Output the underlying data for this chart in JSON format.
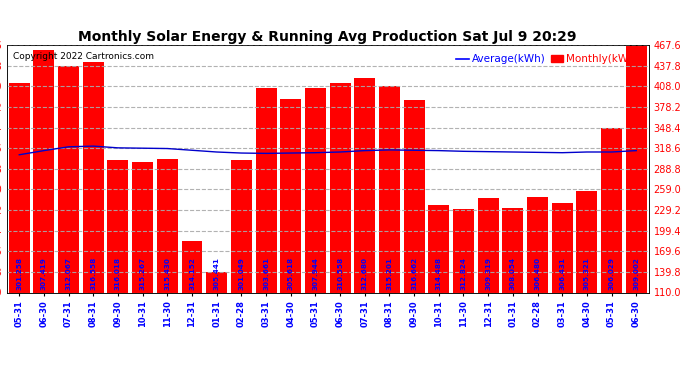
{
  "title": "Monthly Solar Energy & Running Avg Production Sat Jul 9 20:29",
  "copyright": "Copyright 2022 Cartronics.com",
  "legend_avg": "Average(kWh)",
  "legend_monthly": "Monthly(kWh)",
  "background_color": "#ffffff",
  "bar_color": "#ff0000",
  "line_color": "#0000cc",
  "grid_color": "#aaaaaa",
  "title_color": "#000000",
  "ylim": [
    110.0,
    467.6
  ],
  "yticks": [
    110.0,
    139.8,
    169.6,
    199.4,
    229.2,
    259.0,
    288.8,
    318.6,
    348.4,
    378.2,
    408.0,
    437.8,
    467.6
  ],
  "categories": [
    "05-31",
    "06-30",
    "07-31",
    "08-31",
    "09-30",
    "10-31",
    "11-30",
    "12-31",
    "01-31",
    "02-28",
    "03-31",
    "04-30",
    "05-31",
    "06-30",
    "07-31",
    "08-31",
    "09-30",
    "10-31",
    "11-30",
    "12-31",
    "01-31",
    "02-28",
    "03-31",
    "04-30",
    "05-31",
    "06-30"
  ],
  "monthly_values": [
    413.0,
    460.0,
    437.8,
    443.0,
    302.0,
    298.0,
    302.5,
    185.0,
    140.0,
    302.0,
    405.0,
    390.0,
    405.0,
    413.0,
    420.0,
    408.0,
    388.0,
    236.0,
    230.0,
    247.0,
    232.0,
    248.0,
    240.0,
    256.0,
    348.0,
    467.6
  ],
  "avg_values": [
    309.0,
    315.0,
    320.5,
    321.5,
    319.0,
    318.5,
    318.0,
    315.5,
    313.0,
    311.5,
    311.0,
    311.5,
    312.0,
    313.0,
    315.0,
    316.0,
    315.5,
    315.0,
    314.0,
    313.5,
    313.0,
    312.5,
    312.0,
    313.0,
    313.0,
    315.0
  ],
  "bar_labels": [
    "301.258",
    "307.419",
    "312.067",
    "316.558",
    "316.018",
    "315.267",
    "315.430",
    "314.152",
    "305.441",
    "301.049",
    "303.661",
    "305.618",
    "307.944",
    "310.558",
    "312.680",
    "315.201",
    "316.662",
    "314.488",
    "312.824",
    "309.319",
    "308.054",
    "306.480",
    "306.431",
    "305.321",
    "306.029",
    "309.002"
  ]
}
